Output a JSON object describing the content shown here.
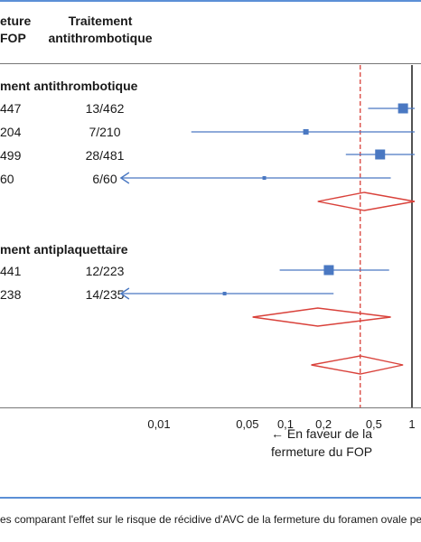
{
  "header": {
    "col_a_line1": "eture",
    "col_a_line2": "FOP",
    "col_b_line1": "Traitement",
    "col_b_line2": "antithrombotique"
  },
  "groups": [
    {
      "label": "ment antithrombotique",
      "rows": [
        {
          "a": "447",
          "b": "13/462"
        },
        {
          "a": "204",
          "b": "7/210"
        },
        {
          "a": "499",
          "b": "28/481"
        },
        {
          "a": "60",
          "b": "6/60"
        }
      ]
    },
    {
      "label": "ment antiplaquettaire",
      "rows": [
        {
          "a": "441",
          "b": "12/223"
        },
        {
          "a": "238",
          "b": "14/235"
        }
      ]
    }
  ],
  "chart_data": {
    "type": "forest",
    "scale": "log",
    "xlim": [
      0.005,
      1.05
    ],
    "x_ticks": [
      "0,01",
      "0,05",
      "0,1",
      "0,2",
      "0,5",
      "1"
    ],
    "x_tick_values": [
      0.01,
      0.05,
      0.1,
      0.2,
      0.5,
      1
    ],
    "reference_line": 1,
    "dashed_line": 0.39,
    "studies": [
      {
        "est": 0.85,
        "lo": 0.45,
        "hi": 1.05,
        "weight": 3,
        "arrow_left": false
      },
      {
        "est": 0.145,
        "lo": 0.018,
        "hi": 1.05,
        "weight": 2,
        "arrow_left": false
      },
      {
        "est": 0.56,
        "lo": 0.3,
        "hi": 1.05,
        "weight": 3,
        "arrow_left": false
      },
      {
        "est": 0.068,
        "lo": 0.005,
        "hi": 0.68,
        "weight": 1,
        "arrow_left": true
      },
      {
        "est": 0.22,
        "lo": 0.09,
        "hi": 0.66,
        "weight": 3,
        "arrow_left": false
      },
      {
        "est": 0.033,
        "lo": 0.005,
        "hi": 0.24,
        "weight": 1,
        "arrow_left": true
      }
    ],
    "diamonds": [
      {
        "est": 0.42,
        "lo": 0.18,
        "hi": 1.05
      },
      {
        "est": 0.18,
        "lo": 0.055,
        "hi": 0.68
      },
      {
        "est": 0.39,
        "lo": 0.16,
        "hi": 0.85
      }
    ]
  },
  "favor_text_line1": "← En faveur de la",
  "favor_text_line2": "fermeture du FOP",
  "caption": "es comparant l'effet sur le risque de récidive d'AVC de la fermeture du foramen ovale perméable"
}
